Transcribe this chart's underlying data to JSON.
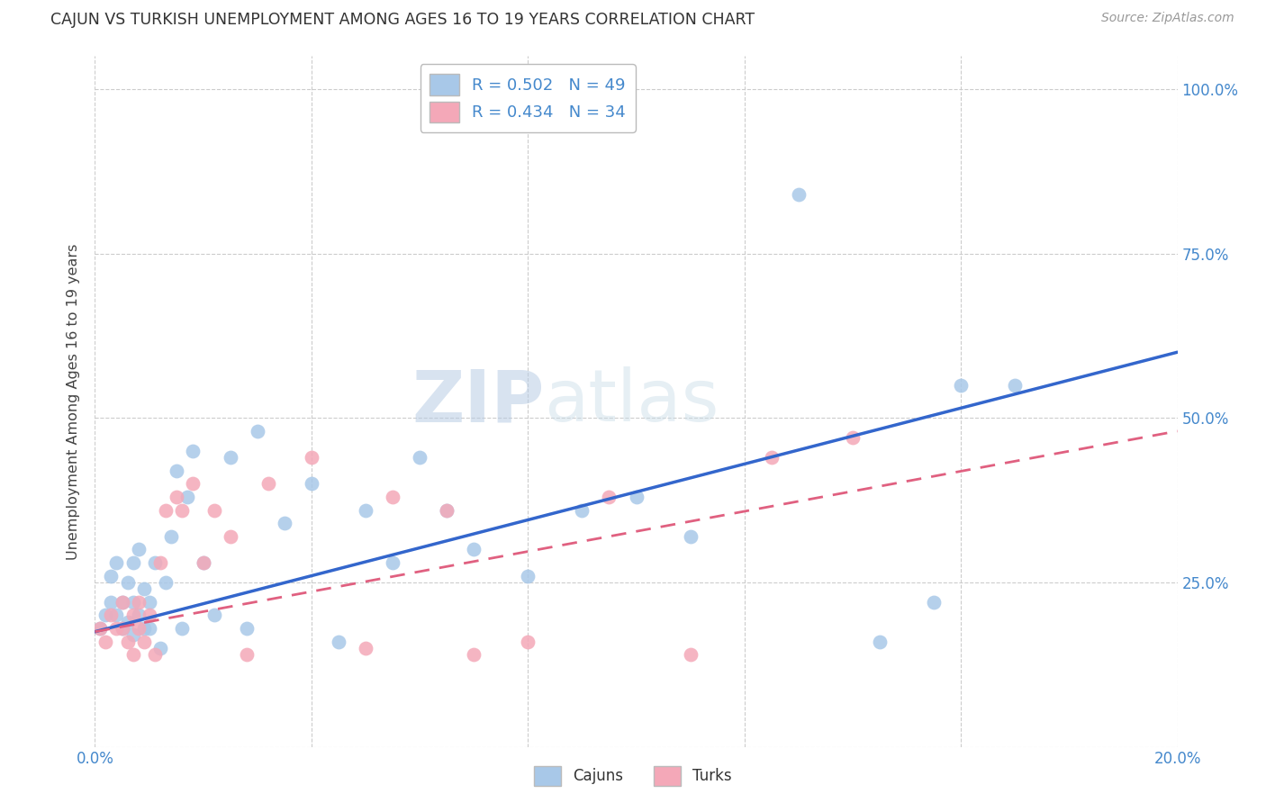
{
  "title": "CAJUN VS TURKISH UNEMPLOYMENT AMONG AGES 16 TO 19 YEARS CORRELATION CHART",
  "source": "Source: ZipAtlas.com",
  "ylabel": "Unemployment Among Ages 16 to 19 years",
  "xlim": [
    0.0,
    0.2
  ],
  "ylim": [
    0.0,
    1.05
  ],
  "ytick_vals": [
    0.0,
    0.25,
    0.5,
    0.75,
    1.0
  ],
  "xtick_vals": [
    0.0,
    0.04,
    0.08,
    0.12,
    0.16,
    0.2
  ],
  "cajun_color": "#a8c8e8",
  "turk_color": "#f4a8b8",
  "cajun_line_color": "#3366cc",
  "turk_line_color": "#e06080",
  "cajun_r": 0.502,
  "cajun_n": 49,
  "turk_r": 0.434,
  "turk_n": 34,
  "background_color": "#ffffff",
  "grid_color": "#cccccc",
  "right_axis_color": "#4488cc",
  "title_color": "#333333",
  "watermark_zip": "ZIP",
  "watermark_atlas": "atlas",
  "cajun_x": [
    0.001,
    0.002,
    0.003,
    0.003,
    0.004,
    0.004,
    0.005,
    0.005,
    0.006,
    0.006,
    0.007,
    0.007,
    0.007,
    0.008,
    0.008,
    0.009,
    0.009,
    0.01,
    0.01,
    0.011,
    0.012,
    0.013,
    0.014,
    0.015,
    0.016,
    0.017,
    0.018,
    0.02,
    0.022,
    0.025,
    0.028,
    0.03,
    0.035,
    0.04,
    0.045,
    0.05,
    0.055,
    0.06,
    0.065,
    0.07,
    0.08,
    0.09,
    0.1,
    0.11,
    0.13,
    0.145,
    0.155,
    0.16,
    0.17
  ],
  "cajun_y": [
    0.18,
    0.2,
    0.22,
    0.26,
    0.2,
    0.28,
    0.18,
    0.22,
    0.19,
    0.25,
    0.22,
    0.17,
    0.28,
    0.2,
    0.3,
    0.18,
    0.24,
    0.18,
    0.22,
    0.28,
    0.15,
    0.25,
    0.32,
    0.42,
    0.18,
    0.38,
    0.45,
    0.28,
    0.2,
    0.44,
    0.18,
    0.48,
    0.34,
    0.4,
    0.16,
    0.36,
    0.28,
    0.44,
    0.36,
    0.3,
    0.26,
    0.36,
    0.38,
    0.32,
    0.84,
    0.16,
    0.22,
    0.55,
    0.55
  ],
  "turk_x": [
    0.001,
    0.002,
    0.003,
    0.004,
    0.005,
    0.005,
    0.006,
    0.007,
    0.007,
    0.008,
    0.008,
    0.009,
    0.01,
    0.011,
    0.012,
    0.013,
    0.015,
    0.016,
    0.018,
    0.02,
    0.022,
    0.025,
    0.028,
    0.032,
    0.04,
    0.05,
    0.055,
    0.065,
    0.07,
    0.08,
    0.095,
    0.11,
    0.125,
    0.14
  ],
  "turk_y": [
    0.18,
    0.16,
    0.2,
    0.18,
    0.18,
    0.22,
    0.16,
    0.2,
    0.14,
    0.18,
    0.22,
    0.16,
    0.2,
    0.14,
    0.28,
    0.36,
    0.38,
    0.36,
    0.4,
    0.28,
    0.36,
    0.32,
    0.14,
    0.4,
    0.44,
    0.15,
    0.38,
    0.36,
    0.14,
    0.16,
    0.38,
    0.14,
    0.44,
    0.47
  ],
  "cajun_line_x0": 0.0,
  "cajun_line_y0": 0.175,
  "cajun_line_x1": 0.2,
  "cajun_line_y1": 0.6,
  "turk_line_x0": 0.0,
  "turk_line_y0": 0.175,
  "turk_line_x1": 0.2,
  "turk_line_y1": 0.48
}
